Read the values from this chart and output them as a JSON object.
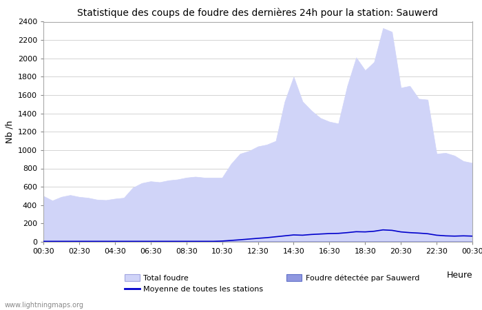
{
  "title": "Statistique des coups de foudre des dernières 24h pour la station: Sauwerd",
  "xlabel": "Heure",
  "ylabel": "Nb /h",
  "ylim": [
    0,
    2400
  ],
  "yticks": [
    0,
    200,
    400,
    600,
    800,
    1000,
    1200,
    1400,
    1600,
    1800,
    2000,
    2200,
    2400
  ],
  "x_labels": [
    "00:30",
    "02:30",
    "04:30",
    "06:30",
    "08:30",
    "10:30",
    "12:30",
    "14:30",
    "16:30",
    "18:30",
    "20:30",
    "22:30",
    "00:30"
  ],
  "background_color": "#ffffff",
  "grid_color": "#cccccc",
  "total_foudre_color": "#d0d4f8",
  "total_foudre_edge": "#c0c4f0",
  "sauwerd_color": "#9098e0",
  "sauwerd_edge": "#8090d8",
  "moyenne_color": "#0000cc",
  "watermark": "www.lightningmaps.org",
  "legend_total": "Total foudre",
  "legend_sauwerd": "Foudre détectée par Sauwerd",
  "legend_moyenne": "Moyenne de toutes les stations",
  "total_foudre": [
    500,
    450,
    490,
    510,
    490,
    480,
    460,
    455,
    470,
    480,
    590,
    640,
    660,
    650,
    670,
    680,
    700,
    710,
    700,
    700,
    700,
    850,
    960,
    990,
    1040,
    1060,
    1100,
    1530,
    1800,
    1530,
    1430,
    1350,
    1310,
    1290,
    1700,
    2010,
    1870,
    1960,
    2330,
    2290,
    1680,
    1700,
    1560,
    1550,
    960,
    970,
    940,
    880,
    860
  ],
  "sauwerd": [
    5,
    5,
    5,
    5,
    5,
    5,
    5,
    5,
    5,
    5,
    5,
    5,
    5,
    5,
    5,
    5,
    5,
    5,
    5,
    5,
    5,
    5,
    5,
    5,
    5,
    5,
    5,
    5,
    5,
    5,
    5,
    5,
    5,
    5,
    5,
    5,
    5,
    5,
    5,
    5,
    5,
    5,
    5,
    5,
    5,
    5,
    5,
    5,
    5
  ],
  "moyenne": [
    5,
    5,
    5,
    5,
    5,
    5,
    5,
    5,
    5,
    5,
    5,
    5,
    5,
    5,
    5,
    5,
    5,
    5,
    5,
    5,
    8,
    15,
    22,
    30,
    38,
    45,
    55,
    65,
    75,
    72,
    80,
    85,
    90,
    92,
    100,
    110,
    108,
    115,
    130,
    125,
    108,
    100,
    95,
    88,
    72,
    65,
    62,
    65,
    62
  ]
}
